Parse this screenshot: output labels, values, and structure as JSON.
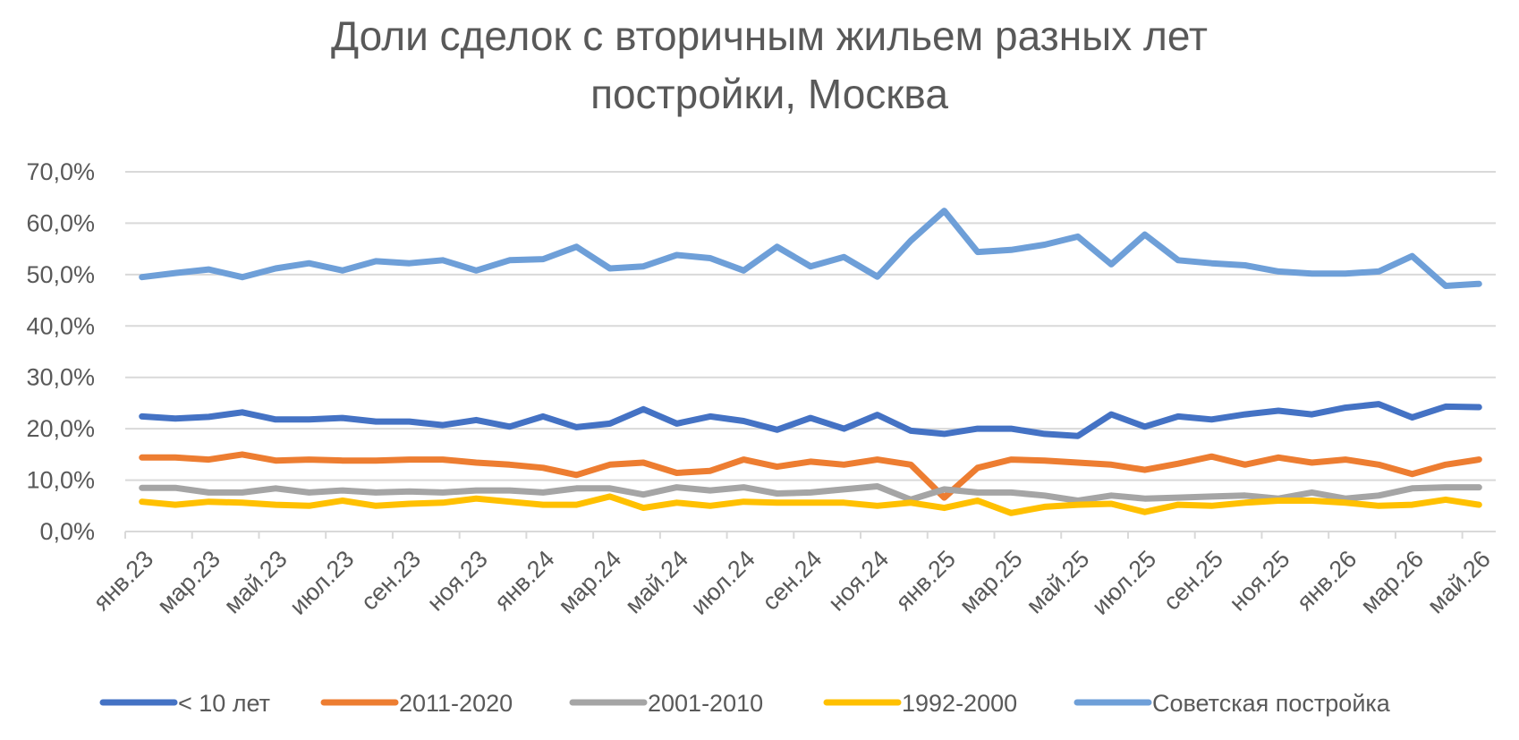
{
  "chart_data": {
    "type": "line",
    "title_lines": [
      "Доли сделок с вторичным жильем разных лет",
      "постройки, Москва"
    ],
    "x": [
      "янв.23",
      "фев.23",
      "мар.23",
      "апр.23",
      "май.23",
      "июн.23",
      "июл.23",
      "авг.23",
      "сен.23",
      "окт.23",
      "ноя.23",
      "дек.23",
      "янв.24",
      "фев.24",
      "мар.24",
      "апр.24",
      "май.24",
      "июн.24",
      "июл.24",
      "авг.24",
      "сен.24",
      "окт.24",
      "ноя.24",
      "дек.24",
      "янв.25",
      "фев.25",
      "мар.25",
      "апр.25",
      "май.25",
      "июн.25",
      "июл.25",
      "авг.25",
      "сен.25",
      "окт.25",
      "ноя.25",
      "дек.25",
      "янв.26",
      "фев.26",
      "мар.26",
      "апр.26",
      "май.26"
    ],
    "x_tick_labels": [
      "янв.23",
      "мар.23",
      "май.23",
      "июл.23",
      "сен.23",
      "ноя.23",
      "янв.24",
      "мар.24",
      "май.24",
      "июл.24",
      "сен.24",
      "ноя.24",
      "янв.25",
      "мар.25",
      "май.25",
      "июл.25",
      "сен.25",
      "ноя.25",
      "янв.26",
      "мар.26",
      "май.26"
    ],
    "y_ticks": [
      "0,0%",
      "10,0%",
      "20,0%",
      "30,0%",
      "40,0%",
      "50,0%",
      "60,0%",
      "70,0%"
    ],
    "ylim": [
      0,
      70
    ],
    "grid": "horizontal",
    "legend_position": "bottom",
    "series": [
      {
        "name": "< 10 лет",
        "color": "#4472C4",
        "values": [
          22.4,
          22.0,
          22.3,
          23.2,
          21.8,
          21.8,
          22.1,
          21.4,
          21.4,
          20.7,
          21.7,
          20.4,
          22.4,
          20.3,
          21.0,
          23.8,
          21.0,
          22.4,
          21.5,
          19.8,
          22.1,
          20.0,
          22.7,
          19.6,
          19.0,
          20.0,
          20.0,
          19.0,
          18.6,
          22.8,
          20.4,
          22.4,
          21.8,
          22.8,
          23.5,
          22.8,
          24.1,
          24.8,
          22.2,
          24.3,
          24.2
        ]
      },
      {
        "name": "2011-2020",
        "color": "#ED7D31",
        "values": [
          14.4,
          14.4,
          14.0,
          15.0,
          13.8,
          14.0,
          13.8,
          13.8,
          14.0,
          14.0,
          13.4,
          13.0,
          12.4,
          11.0,
          13.0,
          13.4,
          11.4,
          11.8,
          14.0,
          12.6,
          13.6,
          13.0,
          14.0,
          13.0,
          6.6,
          12.4,
          14.0,
          13.8,
          13.4,
          13.0,
          12.0,
          13.2,
          14.6,
          13.0,
          14.4,
          13.4,
          14.0,
          13.0,
          11.2,
          13.0,
          14.0
        ]
      },
      {
        "name": "2001-2010",
        "color": "#A5A5A5",
        "values": [
          8.5,
          8.5,
          7.6,
          7.6,
          8.4,
          7.6,
          8.0,
          7.6,
          7.8,
          7.6,
          8.0,
          8.0,
          7.6,
          8.4,
          8.4,
          7.2,
          8.6,
          8.0,
          8.6,
          7.4,
          7.6,
          8.2,
          8.8,
          6.2,
          8.2,
          7.6,
          7.6,
          7.0,
          6.0,
          7.0,
          6.4,
          6.6,
          6.8,
          7.0,
          6.4,
          7.6,
          6.4,
          7.0,
          8.4,
          8.6,
          8.6
        ]
      },
      {
        "name": "1992-2000",
        "color": "#FFC000",
        "values": [
          5.8,
          5.2,
          5.8,
          5.6,
          5.2,
          5.0,
          6.0,
          5.0,
          5.4,
          5.6,
          6.4,
          5.8,
          5.2,
          5.2,
          6.8,
          4.6,
          5.6,
          5.0,
          5.8,
          5.6,
          5.6,
          5.6,
          5.0,
          5.6,
          4.6,
          6.0,
          3.6,
          4.8,
          5.2,
          5.4,
          3.8,
          5.2,
          5.0,
          5.6,
          6.0,
          6.0,
          5.6,
          5.0,
          5.2,
          6.2,
          5.2
        ]
      },
      {
        "name": "Советская постройка",
        "color": "#6E9FD8",
        "values": [
          49.5,
          50.3,
          51.0,
          49.5,
          51.2,
          52.2,
          50.8,
          52.6,
          52.2,
          52.8,
          50.8,
          52.8,
          53.0,
          55.4,
          51.2,
          51.6,
          53.8,
          53.2,
          50.8,
          55.4,
          51.6,
          53.4,
          49.6,
          56.6,
          62.4,
          54.4,
          54.8,
          55.8,
          57.4,
          52.0,
          57.8,
          52.8,
          52.2,
          51.8,
          50.6,
          50.2,
          50.2,
          50.6,
          53.6,
          47.8,
          48.2
        ]
      }
    ]
  }
}
